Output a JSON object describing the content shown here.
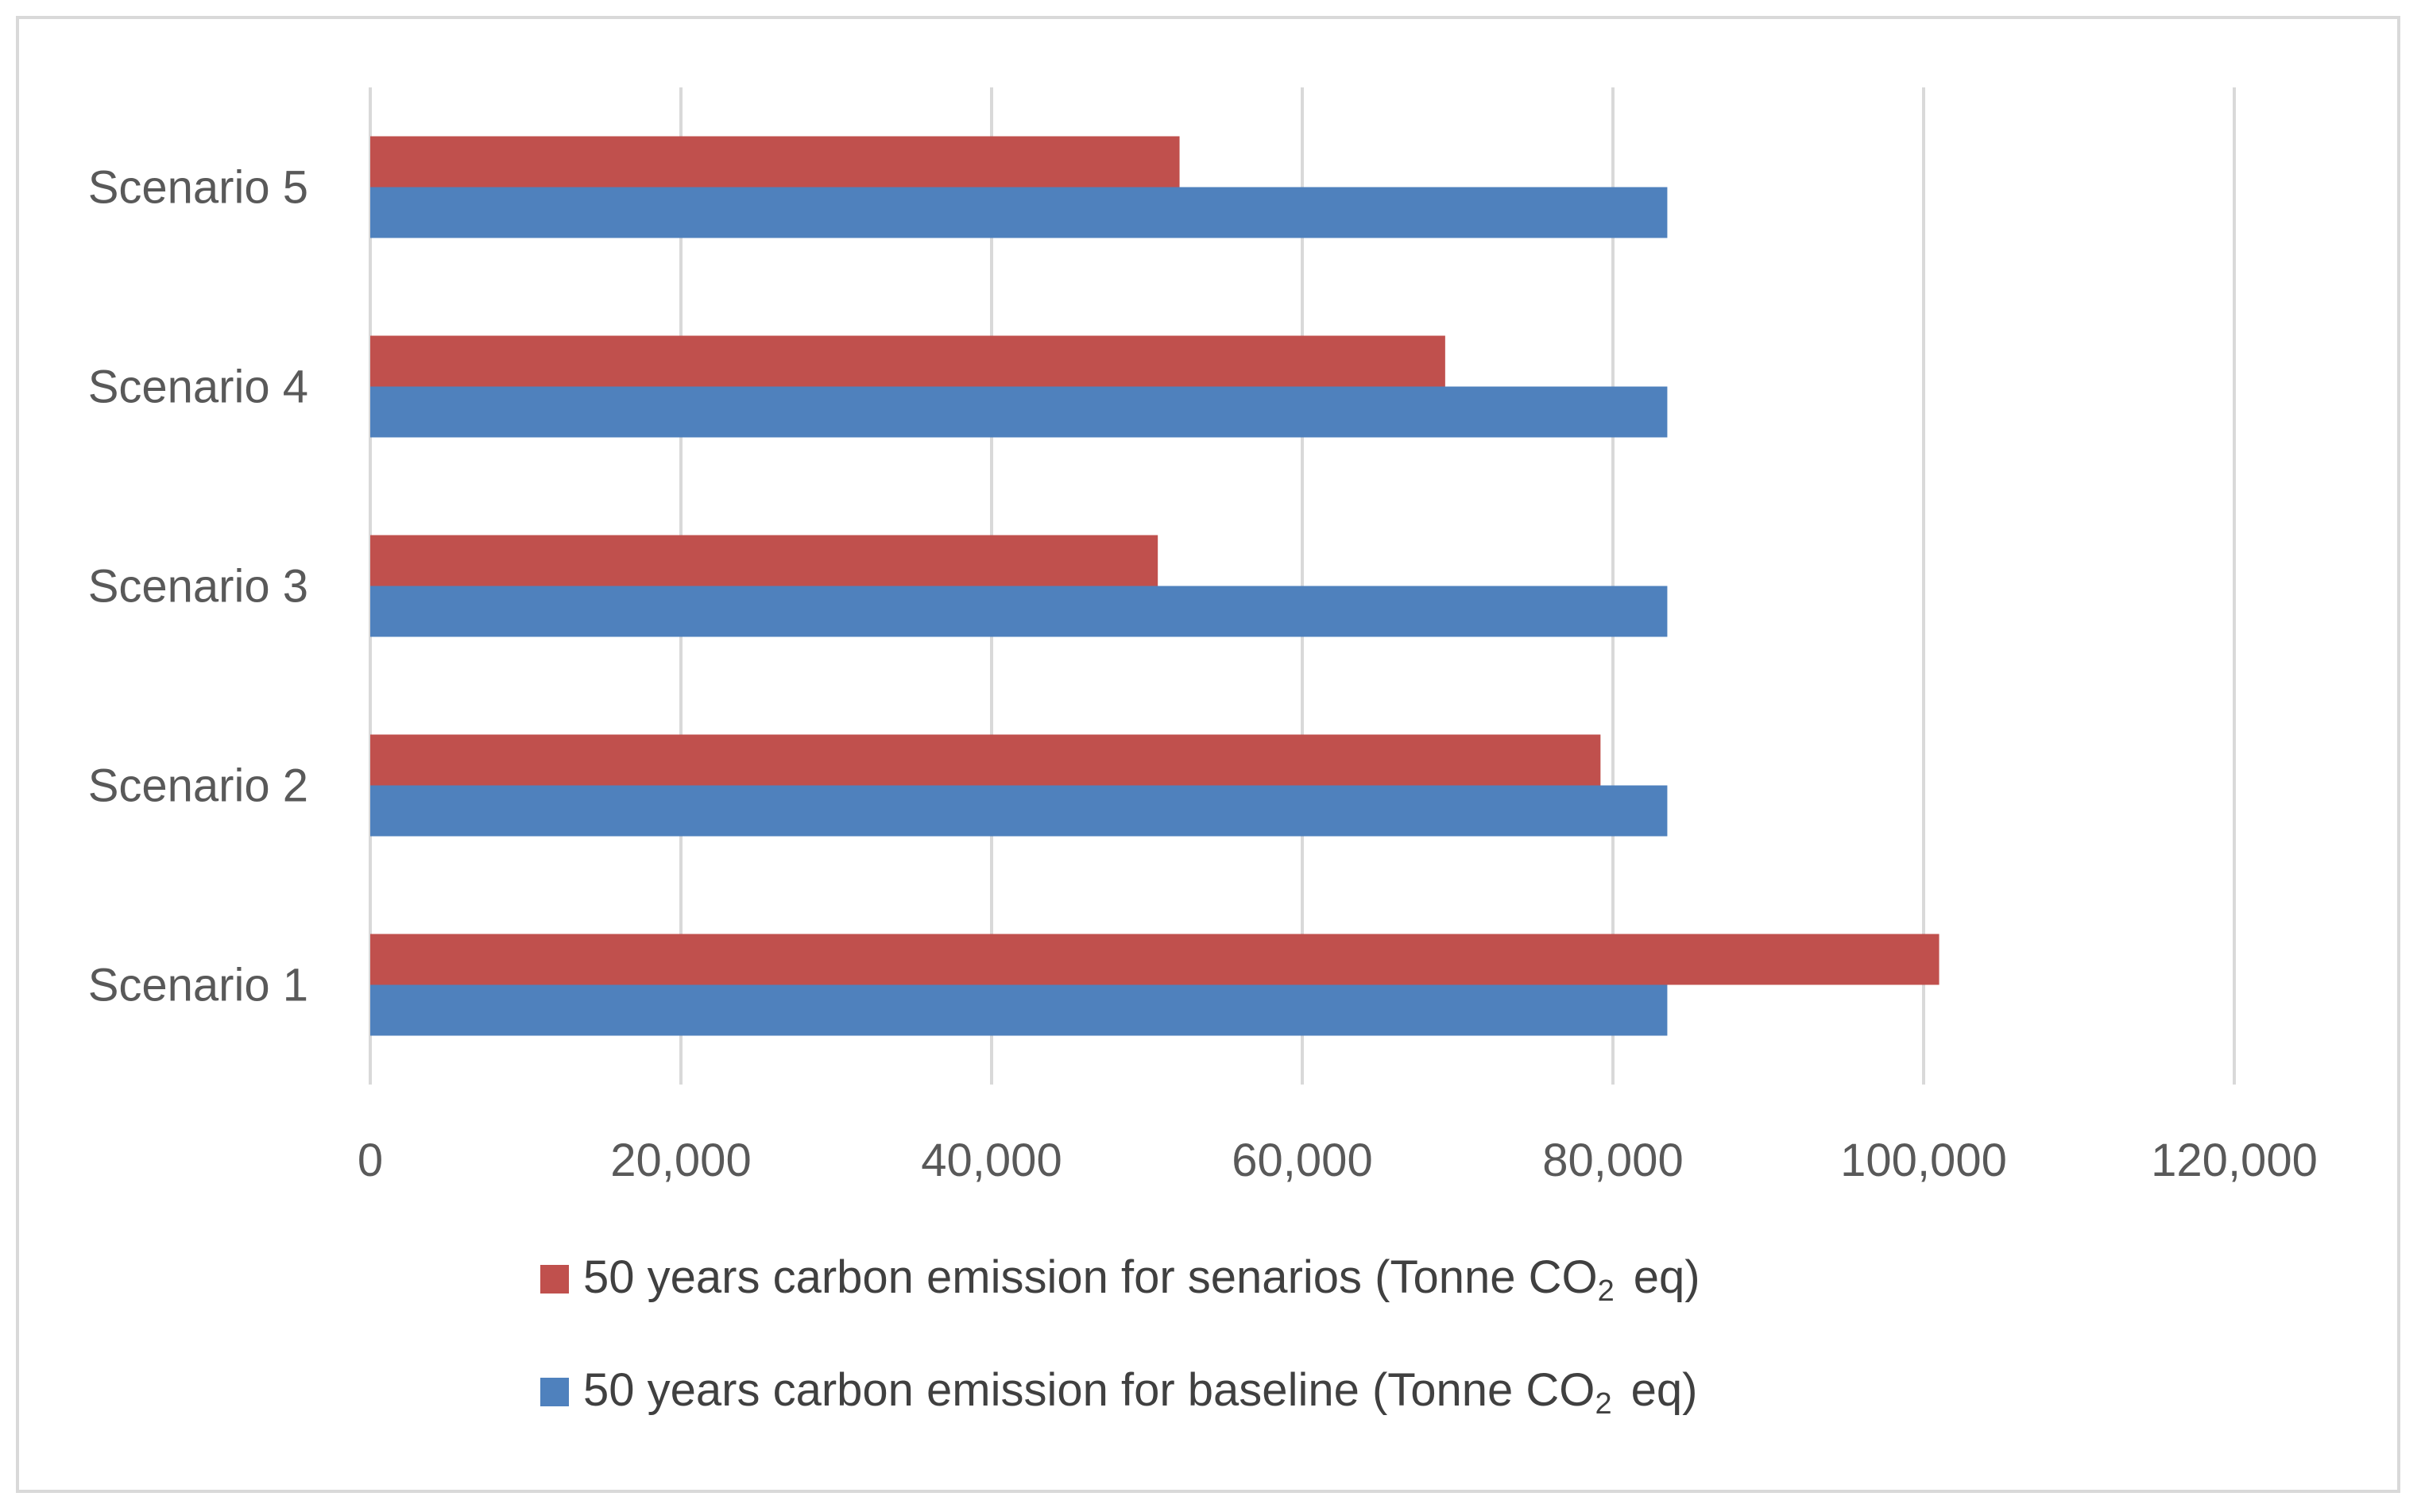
{
  "chart_data": {
    "type": "bar",
    "orientation": "horizontal",
    "categories": [
      "Scenario 1",
      "Scenario 2",
      "Scenario 3",
      "Scenario 4",
      "Scenario 5"
    ],
    "series": [
      {
        "name": "50 years carbon emission for senarios (Tonne CO2 eq)",
        "legend_prefix": "50 years carbon emission for senarios (Tonne CO",
        "legend_sub": "2",
        "legend_suffix": "eq)",
        "color": "#c0504d",
        "values": [
          101000,
          79200,
          50700,
          69200,
          52100
        ]
      },
      {
        "name": "50 years carbon emission for baseline (Tonne CO2 eq)",
        "legend_prefix": "50 years carbon emission for baseline (Tonne CO",
        "legend_sub": "2",
        "legend_suffix": "eq)",
        "color": "#4f81bd",
        "values": [
          83500,
          83500,
          83500,
          83500,
          83500
        ]
      }
    ],
    "xlim": [
      0,
      120000
    ],
    "xticks": [
      0,
      20000,
      40000,
      60000,
      80000,
      100000,
      120000
    ],
    "xtick_labels": [
      "0",
      "20,000",
      "40,000",
      "60,000",
      "80,000",
      "100,000",
      "120,000"
    ],
    "grid": true,
    "legend_position": "bottom",
    "title": "",
    "xlabel": "",
    "ylabel": ""
  }
}
